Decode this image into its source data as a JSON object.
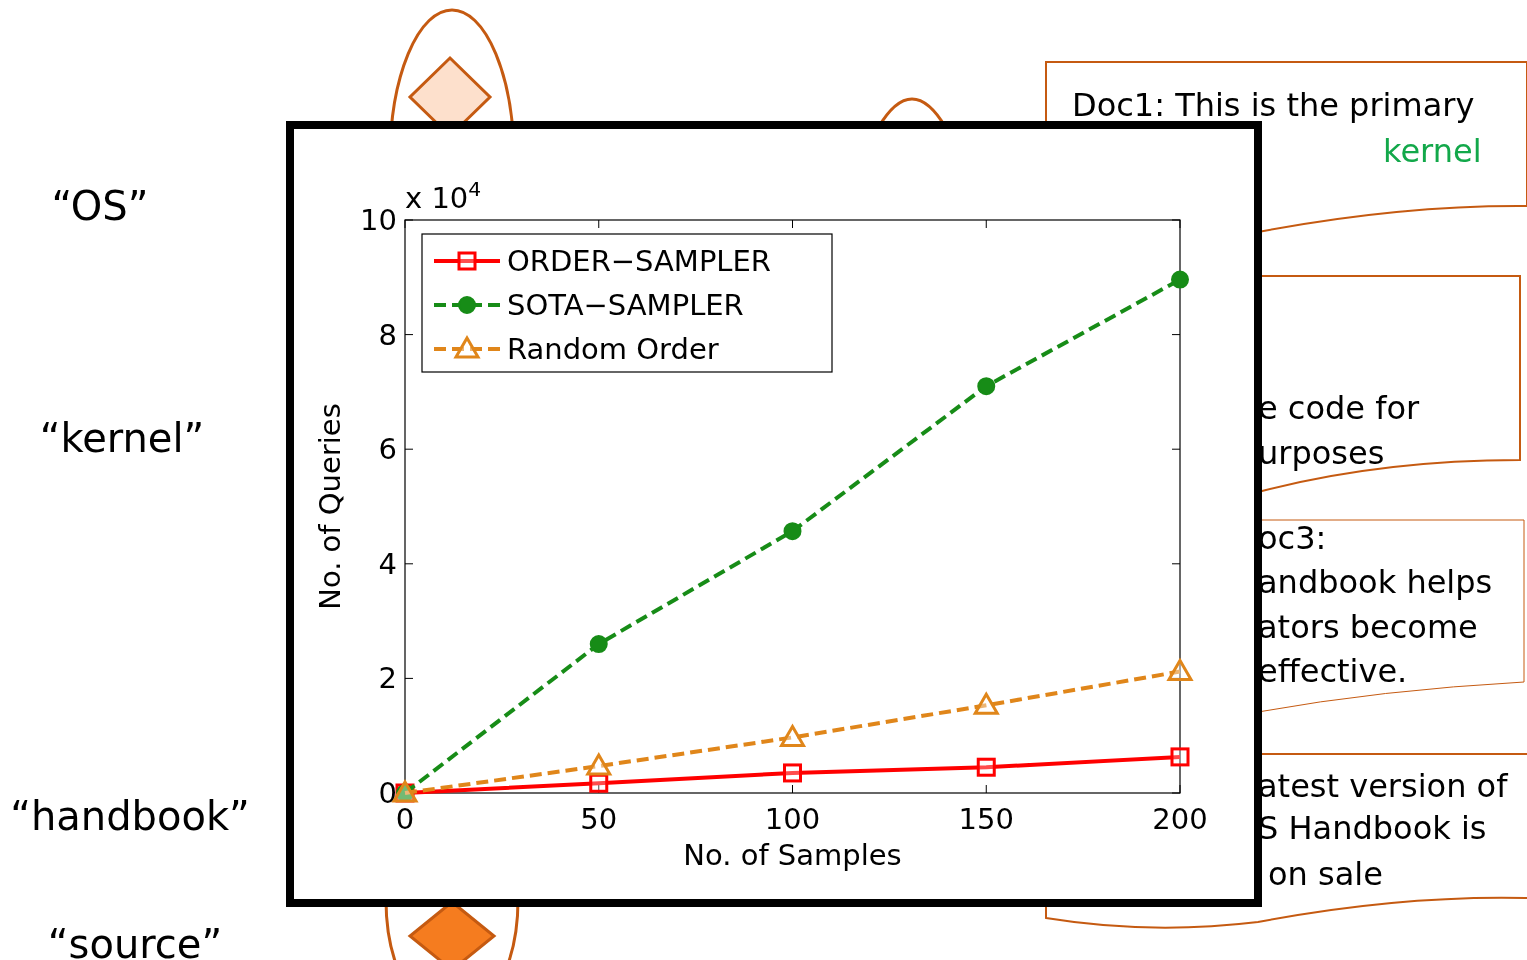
{
  "chart_data": {
    "type": "line",
    "xlabel": "No. of Samples",
    "ylabel": "No. of Queries",
    "x": [
      0,
      50,
      100,
      150,
      200
    ],
    "xlim": [
      0,
      200
    ],
    "xticks": [
      0,
      50,
      100,
      150,
      200
    ],
    "ylim": [
      0,
      10
    ],
    "yticks": [
      0,
      2,
      4,
      6,
      8,
      10
    ],
    "series": [
      {
        "name": "ORDER−SAMPLER",
        "color": "#ff0000",
        "values": [
          0,
          0.17,
          0.35,
          0.45,
          0.63
        ],
        "marker": "square",
        "line_style": "solid"
      },
      {
        "name": "SOTA−SAMPLER",
        "color": "#178c17",
        "values": [
          0,
          2.6,
          4.57,
          7.1,
          8.96
        ],
        "marker": "circle",
        "line_style": "dashed"
      },
      {
        "name": "Random Order",
        "color": "#e0861a",
        "values": [
          0,
          0.47,
          0.97,
          1.53,
          2.12
        ],
        "marker": "triangle",
        "line_style": "dashed"
      }
    ],
    "legend": "top left",
    "annotations": [
      "x 10$^{4}$",
      "“OS”",
      "“kernel”",
      "“handbook”",
      "“source”",
      "Doc1: This is the primary",
      "kernel",
      "e code for",
      "urposes",
      "oc3:",
      "andbook helps",
      "ators become",
      "effective.",
      "atest version of",
      "S Handbook is",
      "on sale"
    ]
  }
}
